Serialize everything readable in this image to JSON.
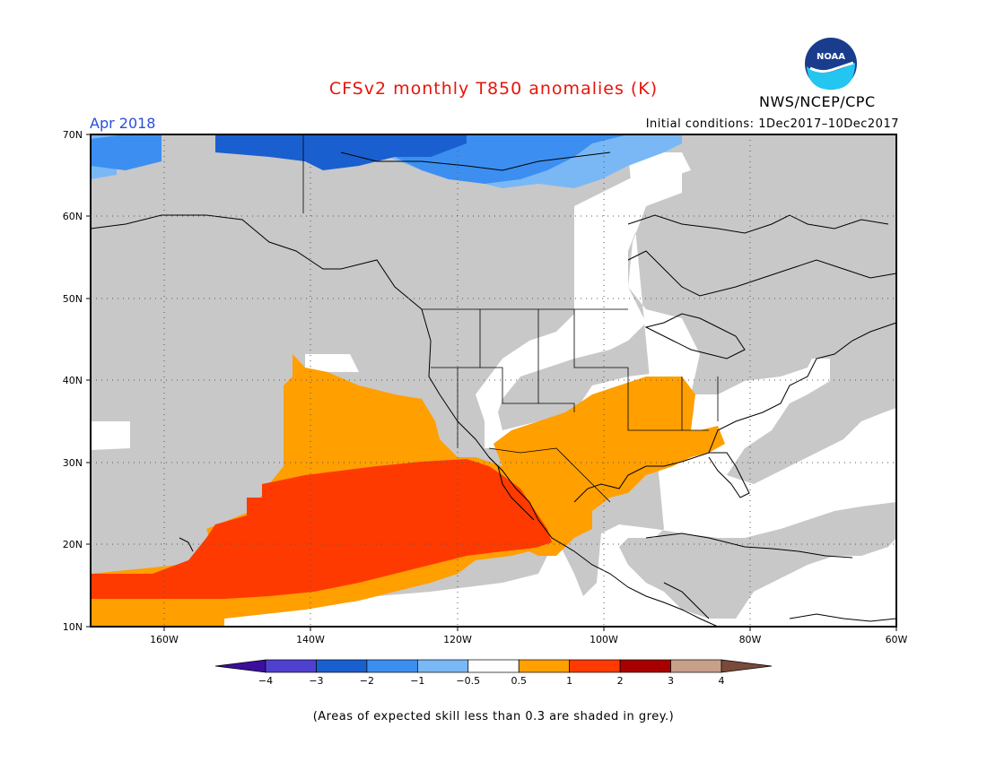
{
  "title": "CFSv2 monthly T850 anomalies (K)",
  "agency": "NWS/NCEP/CPC",
  "logo_text": "NOAA",
  "forecast_month": "Apr 2018",
  "initial_conditions": "Initial conditions: 1Dec2017–10Dec2017",
  "footnote": "(Areas of expected skill less than 0.3 are shaded in grey.)",
  "map": {
    "lat_labels": [
      "70N",
      "60N",
      "50N",
      "40N",
      "30N",
      "20N",
      "10N"
    ],
    "lon_labels": [
      "160W",
      "140W",
      "120W",
      "100W",
      "80W",
      "60W"
    ]
  },
  "colorbar": {
    "tick_labels": [
      "−4",
      "−3",
      "−2",
      "−1",
      "−0.5",
      "0.5",
      "1",
      "2",
      "3",
      "4"
    ],
    "colors": [
      "#3a0f9c",
      "#5040d0",
      "#1a5fd0",
      "#3c8ff0",
      "#7ab8f5",
      "#ffffff",
      "#ff9f00",
      "#ff3a00",
      "#a80000",
      "#c8a08a",
      "#7a4a3a"
    ]
  }
}
